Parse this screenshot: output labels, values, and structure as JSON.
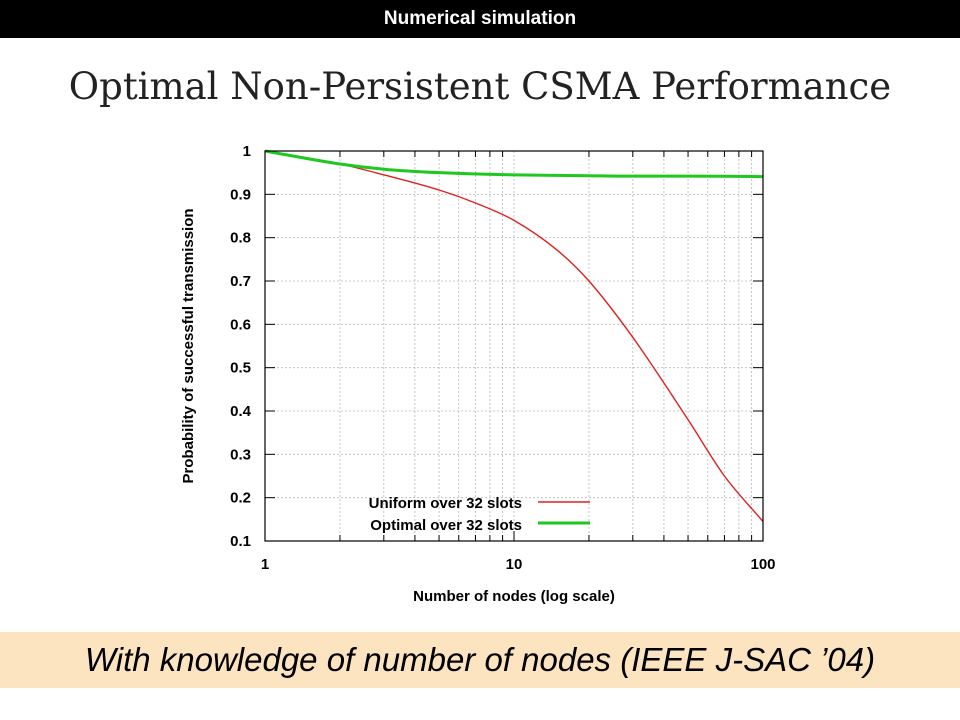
{
  "header": {
    "banner": "Numerical simulation"
  },
  "slide": {
    "title": "Optimal Non-Persistent CSMA Performance",
    "footer": "With knowledge of number of nodes (IEEE J-SAC ’04)"
  },
  "chart_data": {
    "type": "line",
    "title": "",
    "xlabel": "Number of nodes (log scale)",
    "ylabel": "Probability of successful transmission",
    "x_scale": "log",
    "xlim": [
      1,
      100
    ],
    "ylim": [
      0.1,
      1
    ],
    "x_ticks": [
      1,
      10,
      100
    ],
    "x_tick_labels": [
      "1",
      "10",
      "100"
    ],
    "y_ticks": [
      0.1,
      0.2,
      0.3,
      0.4,
      0.5,
      0.6,
      0.7,
      0.8,
      0.9,
      1
    ],
    "y_tick_labels": [
      "0.1",
      "0.2",
      "0.3",
      "0.4",
      "0.5",
      "0.6",
      "0.7",
      "0.8",
      "0.9",
      "1"
    ],
    "grid": true,
    "legend_position": "bottom-right",
    "series": [
      {
        "name": "Uniform over 32 slots",
        "color": "#e02020",
        "x": [
          1,
          2,
          3,
          5,
          7,
          10,
          15,
          20,
          30,
          50,
          70,
          100
        ],
        "y": [
          1.0,
          0.97,
          0.945,
          0.91,
          0.88,
          0.84,
          0.77,
          0.7,
          0.57,
          0.38,
          0.25,
          0.145
        ]
      },
      {
        "name": "Optimal over 32 slots",
        "color": "#1ec81e",
        "x": [
          1,
          2,
          3,
          5,
          10,
          20,
          30,
          50,
          100
        ],
        "y": [
          1.0,
          0.97,
          0.958,
          0.95,
          0.945,
          0.943,
          0.942,
          0.942,
          0.941
        ]
      }
    ]
  }
}
